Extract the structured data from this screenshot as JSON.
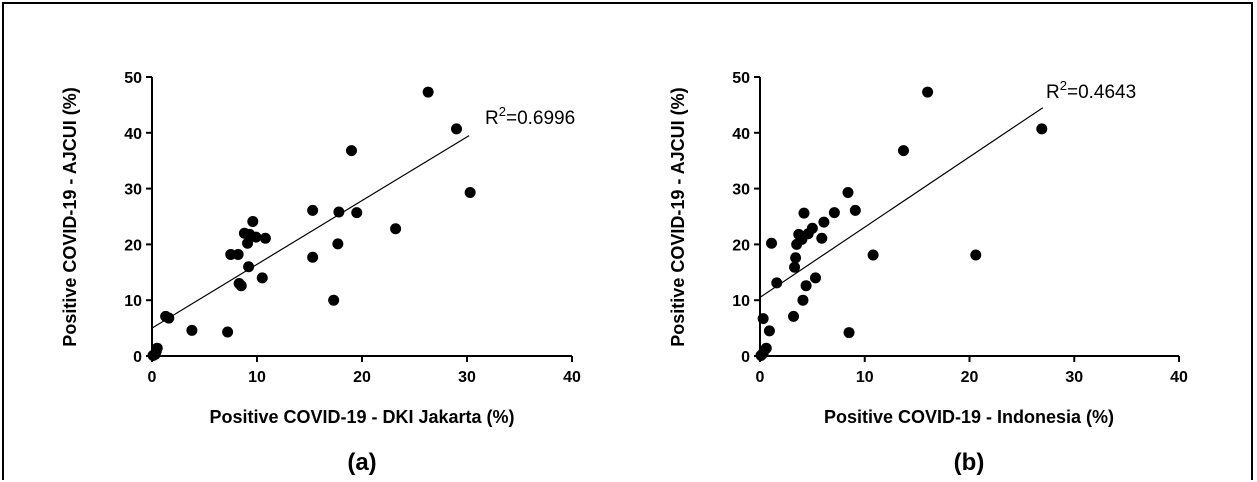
{
  "chart_data": [
    {
      "type": "scatter",
      "panel_label": "(a)",
      "xlabel": "Positive COVID-19 - DKI Jakarta (%)",
      "ylabel": "Positive COVID-19 - AJCUI (%)",
      "xlim": [
        0,
        40
      ],
      "ylim": [
        0,
        50
      ],
      "xticks": [
        0,
        10,
        20,
        30,
        40
      ],
      "yticks": [
        0,
        10,
        20,
        30,
        40,
        50
      ],
      "grid": false,
      "annotation": {
        "prefix": "R",
        "sup": "2",
        "value": "=0.6996"
      },
      "fit_line": {
        "x": [
          0,
          30.2
        ],
        "y": [
          5,
          39.5
        ]
      },
      "points": [
        {
          "x": 0.1,
          "y": 0.1
        },
        {
          "x": 0.3,
          "y": 0.3
        },
        {
          "x": 0.5,
          "y": 1.4
        },
        {
          "x": 0.4,
          "y": 0.8
        },
        {
          "x": 1.3,
          "y": 7.1
        },
        {
          "x": 1.6,
          "y": 6.8
        },
        {
          "x": 3.8,
          "y": 4.6
        },
        {
          "x": 7.2,
          "y": 4.3
        },
        {
          "x": 7.5,
          "y": 18.2
        },
        {
          "x": 8.2,
          "y": 18.2
        },
        {
          "x": 8.3,
          "y": 13.0
        },
        {
          "x": 8.5,
          "y": 12.6
        },
        {
          "x": 8.8,
          "y": 22.0
        },
        {
          "x": 9.1,
          "y": 20.2
        },
        {
          "x": 9.3,
          "y": 21.8
        },
        {
          "x": 9.2,
          "y": 16.0
        },
        {
          "x": 9.6,
          "y": 24.1
        },
        {
          "x": 9.9,
          "y": 21.3
        },
        {
          "x": 10.5,
          "y": 14.0
        },
        {
          "x": 10.8,
          "y": 21.1
        },
        {
          "x": 15.3,
          "y": 26.1
        },
        {
          "x": 15.3,
          "y": 17.7
        },
        {
          "x": 17.3,
          "y": 10.0
        },
        {
          "x": 17.7,
          "y": 20.1
        },
        {
          "x": 17.8,
          "y": 25.8
        },
        {
          "x": 19.0,
          "y": 36.8
        },
        {
          "x": 19.5,
          "y": 25.7
        },
        {
          "x": 23.2,
          "y": 22.8
        },
        {
          "x": 26.3,
          "y": 47.3
        },
        {
          "x": 29.0,
          "y": 40.7
        },
        {
          "x": 30.3,
          "y": 29.3
        }
      ]
    },
    {
      "type": "scatter",
      "panel_label": "(b)",
      "xlabel": "Positive COVID-19 - Indonesia (%)",
      "ylabel": "Positive COVID-19 - AJCUI (%)",
      "xlim": [
        0,
        40
      ],
      "ylim": [
        0,
        50
      ],
      "xticks": [
        0,
        10,
        20,
        30,
        40
      ],
      "yticks": [
        0,
        10,
        20,
        30,
        40,
        50
      ],
      "grid": false,
      "annotation": {
        "prefix": "R",
        "sup": "2",
        "value": "=0.4643"
      },
      "fit_line": {
        "x": [
          0,
          27
        ],
        "y": [
          10.5,
          44.5
        ]
      },
      "points": [
        {
          "x": 0.1,
          "y": 0.1
        },
        {
          "x": 0.3,
          "y": 0.5
        },
        {
          "x": 0.3,
          "y": 6.7
        },
        {
          "x": 0.6,
          "y": 1.4
        },
        {
          "x": 0.9,
          "y": 4.5
        },
        {
          "x": 1.1,
          "y": 20.2
        },
        {
          "x": 1.6,
          "y": 13.1
        },
        {
          "x": 3.2,
          "y": 7.1
        },
        {
          "x": 3.3,
          "y": 15.9
        },
        {
          "x": 3.4,
          "y": 17.6
        },
        {
          "x": 3.5,
          "y": 20.0
        },
        {
          "x": 3.7,
          "y": 21.8
        },
        {
          "x": 4.0,
          "y": 20.9
        },
        {
          "x": 4.1,
          "y": 10.0
        },
        {
          "x": 4.2,
          "y": 25.6
        },
        {
          "x": 4.4,
          "y": 12.6
        },
        {
          "x": 4.6,
          "y": 21.9
        },
        {
          "x": 5.0,
          "y": 22.9
        },
        {
          "x": 5.3,
          "y": 14.0
        },
        {
          "x": 5.9,
          "y": 21.1
        },
        {
          "x": 6.1,
          "y": 24.0
        },
        {
          "x": 7.1,
          "y": 25.7
        },
        {
          "x": 8.4,
          "y": 29.3
        },
        {
          "x": 8.5,
          "y": 4.2
        },
        {
          "x": 9.1,
          "y": 26.1
        },
        {
          "x": 10.8,
          "y": 18.1
        },
        {
          "x": 13.7,
          "y": 36.8
        },
        {
          "x": 16.0,
          "y": 47.3
        },
        {
          "x": 20.6,
          "y": 18.1
        },
        {
          "x": 26.9,
          "y": 40.7
        }
      ]
    }
  ]
}
